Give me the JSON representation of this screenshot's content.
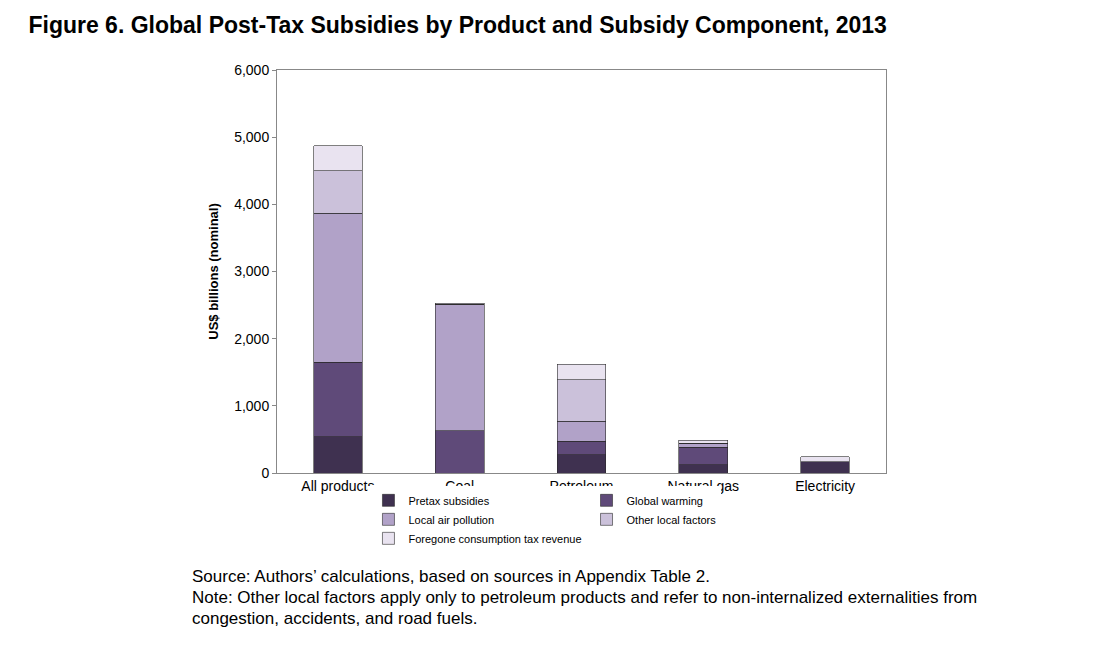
{
  "chart_data": {
    "type": "bar",
    "title": "Figure 6. Global Post-Tax Subsidies by Product and Subsidy Component, 2013",
    "y_label": "US$ billions (nominal)",
    "categories": [
      "All products",
      "Coal",
      "Petroleum",
      "Natural gas",
      "Electricity"
    ],
    "series": [
      {
        "name": "Pretax subsidies",
        "color": "#3f3150",
        "values": [
          540,
          0,
          270,
          120,
          170
        ]
      },
      {
        "name": "Global warming",
        "color": "#5f4a79",
        "values": [
          1110,
          630,
          200,
          260,
          0
        ]
      },
      {
        "name": "Local air pollution",
        "color": "#b1a2c8",
        "values": [
          2220,
          1880,
          300,
          60,
          0
        ]
      },
      {
        "name": "Other local factors",
        "color": "#cbc1da",
        "values": [
          630,
          0,
          620,
          0,
          0
        ]
      },
      {
        "name": "Foregone consumption tax revenue",
        "color": "#e9e3f0",
        "values": [
          370,
          20,
          230,
          50,
          70
        ]
      }
    ],
    "stacked": true,
    "ylim": [
      0,
      6000
    ],
    "yticks": [
      0,
      {
        "value": 1000,
        "label": "1,000"
      },
      {
        "value": 2000,
        "label": "2,000"
      },
      {
        "value": 3000,
        "label": "3,000"
      },
      {
        "value": 4000,
        "label": "4,000"
      },
      {
        "value": 5000,
        "label": "5,000"
      },
      {
        "value": 6000,
        "label": "6,000"
      }
    ],
    "grid": false,
    "legend": "bottom"
  },
  "source": "Source: Authors’ calculations, based on sources in Appendix Table 2.",
  "note": "Note: Other local factors apply only to petroleum products and refer to non-internalized externalities from congestion, accidents, and road fuels."
}
